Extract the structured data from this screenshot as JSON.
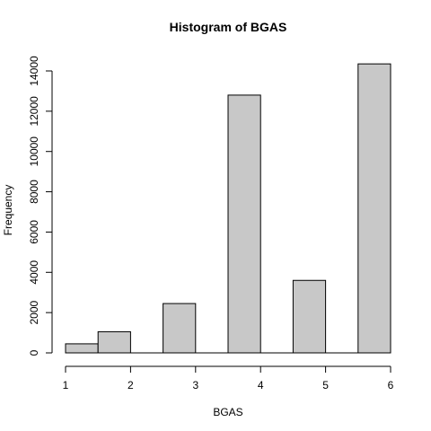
{
  "chart_data": {
    "type": "bar",
    "title": "Histogram of BGAS",
    "xlabel": "BGAS",
    "ylabel": "Frequency",
    "bins": [
      {
        "start": 1.0,
        "end": 1.5,
        "count": 450
      },
      {
        "start": 1.5,
        "end": 2.0,
        "count": 1050
      },
      {
        "start": 2.0,
        "end": 2.5,
        "count": 0
      },
      {
        "start": 2.5,
        "end": 3.0,
        "count": 2450
      },
      {
        "start": 3.0,
        "end": 3.5,
        "count": 0
      },
      {
        "start": 3.5,
        "end": 4.0,
        "count": 12800
      },
      {
        "start": 4.0,
        "end": 4.5,
        "count": 0
      },
      {
        "start": 4.5,
        "end": 5.0,
        "count": 3600
      },
      {
        "start": 5.0,
        "end": 5.5,
        "count": 0
      },
      {
        "start": 5.5,
        "end": 6.0,
        "count": 14350
      }
    ],
    "xlim": [
      1,
      6
    ],
    "ylim": [
      0,
      14000
    ],
    "x_ticks": [
      1,
      2,
      3,
      4,
      5,
      6
    ],
    "x_tick_labels": [
      "1",
      "2",
      "3",
      "4",
      "5",
      "6"
    ],
    "y_ticks": [
      0,
      2000,
      4000,
      6000,
      8000,
      10000,
      12000,
      14000
    ],
    "y_tick_labels": [
      "0",
      "2000",
      "4000",
      "6000",
      "8000",
      "10000",
      "12000",
      "14000"
    ],
    "grid": false,
    "colors": {
      "bar_fill": "#c8c8c8",
      "bar_stroke": "#000000"
    }
  }
}
